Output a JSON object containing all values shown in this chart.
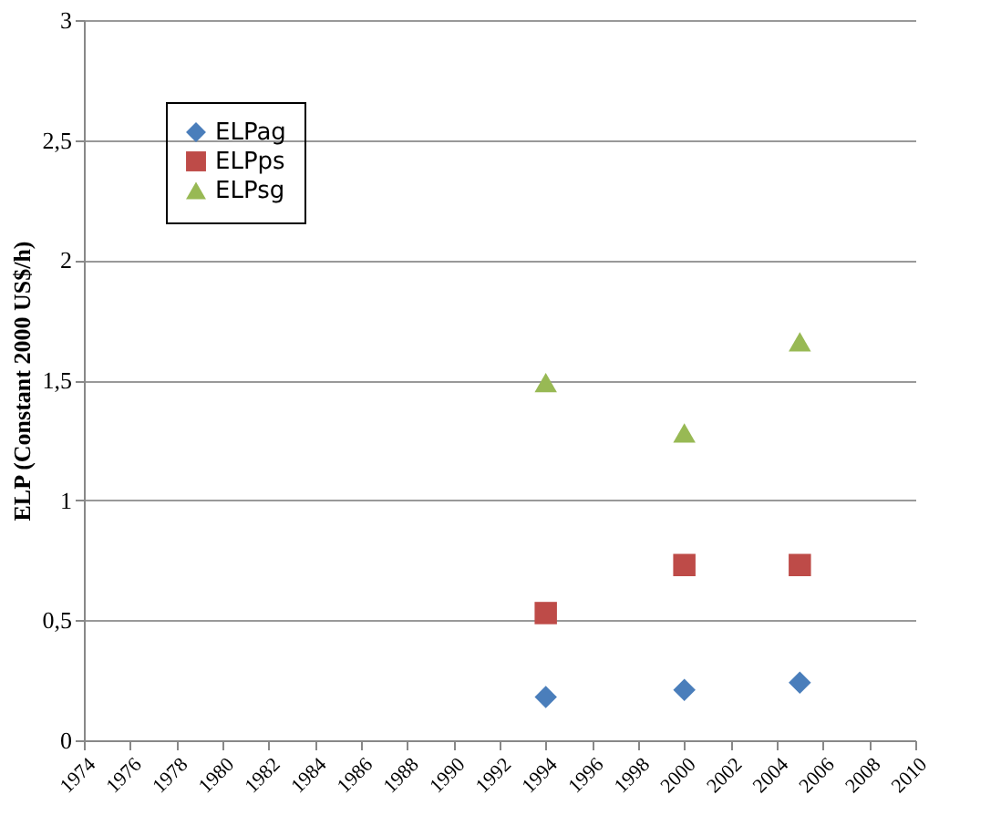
{
  "chart_data": {
    "type": "scatter",
    "ylabel": "ELP (Constant 2000 US$/h)",
    "x": [
      1994,
      2000,
      2005
    ],
    "series": [
      {
        "name": "ELPag",
        "color": "#4a7ebb",
        "marker": "diamond",
        "values": [
          0.18,
          0.21,
          0.24
        ]
      },
      {
        "name": "ELPps",
        "color": "#be4b48",
        "marker": "square",
        "values": [
          0.53,
          0.73,
          0.73
        ]
      },
      {
        "name": "ELPsg",
        "color": "#98b954",
        "marker": "triangle",
        "values": [
          1.49,
          1.28,
          1.66
        ]
      }
    ],
    "xlim": [
      1974,
      2010
    ],
    "xticks": [
      1974,
      1976,
      1978,
      1980,
      1982,
      1984,
      1986,
      1988,
      1990,
      1992,
      1994,
      1996,
      1998,
      2000,
      2002,
      2004,
      2006,
      2008,
      2010
    ],
    "ylim": [
      0,
      3
    ],
    "yticks": [
      0,
      {
        "value": 0.5,
        "label": "0,5"
      },
      1,
      {
        "value": 1.5,
        "label": "1,5"
      },
      2,
      {
        "value": 2.5,
        "label": "2,5"
      },
      3
    ],
    "grid": "y",
    "legend": "top left"
  }
}
